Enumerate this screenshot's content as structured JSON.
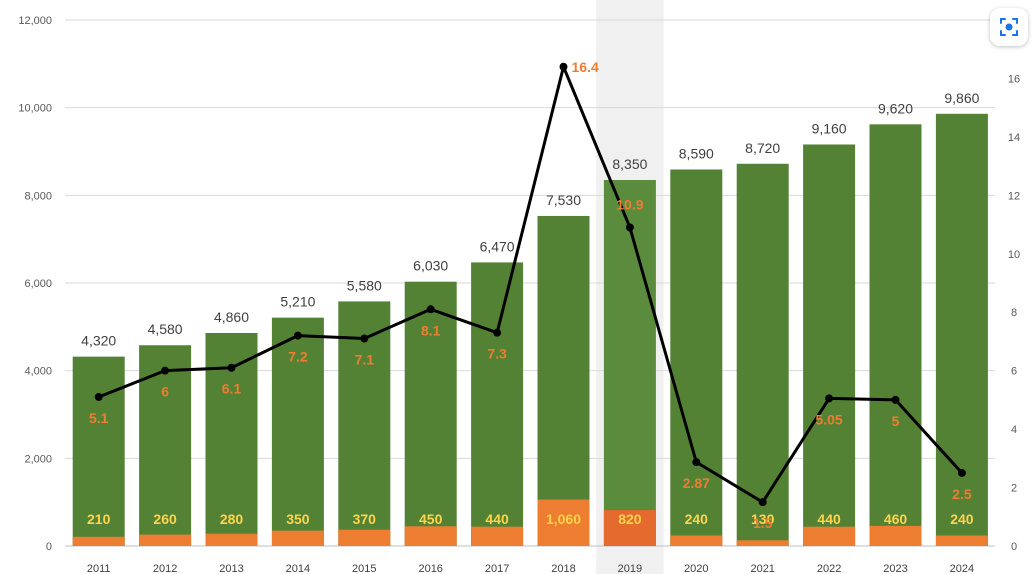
{
  "chart_data": {
    "type": "bar",
    "categories": [
      "2011",
      "2012",
      "2013",
      "2014",
      "2015",
      "2016",
      "2017",
      "2018",
      "2019",
      "2020",
      "2021",
      "2022",
      "2023",
      "2024"
    ],
    "series": [
      {
        "values": [
          4320,
          4580,
          4860,
          5210,
          5580,
          6030,
          6470,
          7530,
          8350,
          8590,
          8720,
          9160,
          9620,
          9860
        ],
        "labels": [
          "4,320",
          "4,580",
          "4,860",
          "5,210",
          "5,580",
          "6,030",
          "6,470",
          "7,530",
          "8,350",
          "8,590",
          "8,720",
          "9,160",
          "9,620",
          "9,860"
        ],
        "color": "#548235"
      },
      {
        "values": [
          210,
          260,
          280,
          350,
          370,
          450,
          440,
          1060,
          820,
          240,
          130,
          440,
          460,
          240
        ],
        "labels": [
          "210",
          "260",
          "280",
          "350",
          "370",
          "450",
          "440",
          "1,060",
          "820",
          "240",
          "130",
          "440",
          "460",
          "240"
        ],
        "color": "#ED7D31"
      },
      {
        "type": "line",
        "axis": "right",
        "values": [
          5.1,
          6,
          6.1,
          7.2,
          7.1,
          8.1,
          7.3,
          16.4,
          10.9,
          2.87,
          1.5,
          5.05,
          5,
          2.5
        ],
        "labels": [
          "5.1",
          "6",
          "6.1",
          "7.2",
          "7.1",
          "8.1",
          "7.3",
          "16.4",
          "10.9",
          "2.87",
          "1.5",
          "5.05",
          "5",
          "2.5"
        ],
        "color": "#000000"
      }
    ],
    "left_axis": {
      "ylim": [
        0,
        12000
      ],
      "ticks": [
        "0",
        "2,000",
        "4,000",
        "6,000",
        "8,000",
        "10,000",
        "12,000"
      ]
    },
    "right_axis": {
      "ylim": [
        0,
        18
      ],
      "ticks": [
        "0",
        "2",
        "4",
        "6",
        "8",
        "10",
        "12",
        "14",
        "16"
      ]
    },
    "highlighted_category": "2019",
    "grid": true,
    "colors": {
      "bar_main": "#548235",
      "bar_main_highlight": "#5B8C3E",
      "bar_sub": "#ED7D31",
      "bar_sub_highlight": "#E46A2E",
      "sub_label": "#FFD44D",
      "line_label": "#ED7D31",
      "highlight_band": "#F0F0F0"
    }
  },
  "toolbar": {
    "icon": "visual-search-icon"
  }
}
